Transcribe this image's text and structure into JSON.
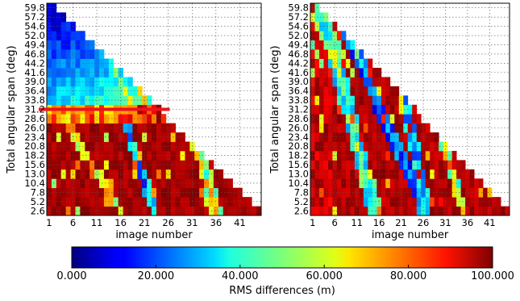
{
  "chart_data": [
    {
      "type": "heatmap",
      "panel": "left",
      "xlabel": "image number",
      "ylabel": "Total angular span (deg)",
      "x_ticks": [
        "1",
        "6",
        "11",
        "16",
        "21",
        "26",
        "31",
        "36",
        "41"
      ],
      "y_ticks": [
        "59.8",
        "57.2",
        "54.6",
        "52.0",
        "49.4",
        "46.8",
        "44.2",
        "41.6",
        "39.0",
        "36.4",
        "33.8",
        "31.2",
        "28.6",
        "26.0",
        "23.4",
        "20.8",
        "18.2",
        "15.6",
        "13.0",
        "10.4",
        "7.8",
        "5.2",
        "2.6"
      ],
      "x_range": [
        1,
        45
      ],
      "y_range": [
        2.6,
        59.8
      ],
      "grid": true,
      "annotation": {
        "type": "horizontal red line",
        "y": 31.2,
        "x_from": 1,
        "x_to": 26
      },
      "value_unit": "m",
      "value_range": [
        0,
        100
      ]
    },
    {
      "type": "heatmap",
      "panel": "right",
      "xlabel": "image number",
      "ylabel": "Total angular span (deg)",
      "x_ticks": [
        "1",
        "6",
        "11",
        "16",
        "21",
        "26",
        "31",
        "36",
        "41"
      ],
      "y_ticks": [
        "59.8",
        "57.2",
        "54.6",
        "52.0",
        "49.4",
        "46.8",
        "44.2",
        "41.6",
        "39.0",
        "36.4",
        "33.8",
        "31.2",
        "28.6",
        "26.0",
        "23.4",
        "20.8",
        "18.2",
        "15.6",
        "13.0",
        "10.4",
        "7.8",
        "5.2",
        "2.6"
      ],
      "x_range": [
        1,
        45
      ],
      "y_range": [
        2.6,
        59.8
      ],
      "grid": true,
      "value_unit": "m",
      "value_range": [
        0,
        100
      ]
    }
  ],
  "colorbar": {
    "label": "RMS differences (m)",
    "ticks": [
      "0.000",
      "20.000",
      "40.000",
      "60.000",
      "80.000",
      "100.000"
    ],
    "range": [
      0,
      100
    ],
    "colormap": "jet"
  },
  "colors": {
    "annotation_line": "#e8141c",
    "max_value": "#800000",
    "min_value": "#00007f"
  }
}
